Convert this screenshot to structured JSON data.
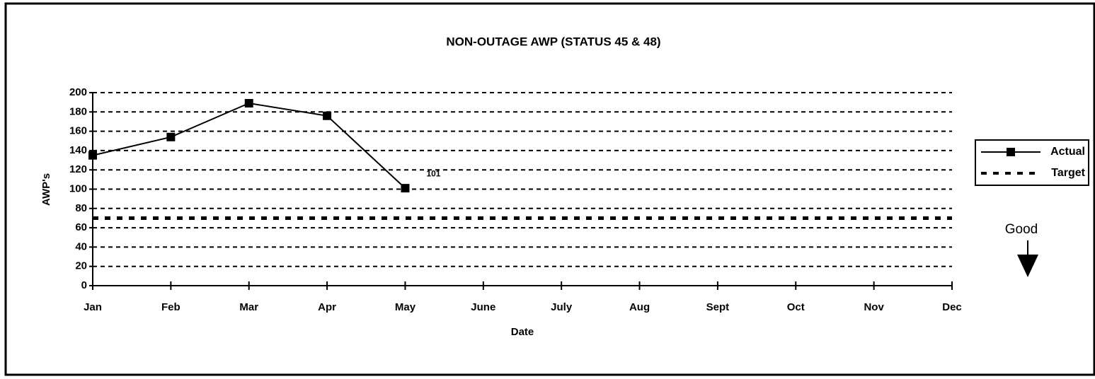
{
  "chart_data": {
    "type": "line",
    "title": "NON-OUTAGE AWP (STATUS 45 & 48)",
    "x_label": "Date",
    "y_label": "AWP's",
    "categories": [
      "Jan",
      "Feb",
      "Mar",
      "Apr",
      "May",
      "June",
      "July",
      "Aug",
      "Sept",
      "Oct",
      "Nov",
      "Dec"
    ],
    "series": [
      {
        "name": "Actual",
        "color": "#000000",
        "style": "solid-square",
        "values": [
          135,
          154,
          189,
          176,
          101,
          null,
          null,
          null,
          null,
          null,
          null,
          null
        ],
        "value_labels": [
          null,
          null,
          null,
          null,
          "101",
          null,
          null,
          null,
          null,
          null,
          null,
          null
        ]
      },
      {
        "name": "Target",
        "color": "#000000",
        "style": "dotted",
        "values": [
          70,
          70,
          70,
          70,
          70,
          70,
          70,
          70,
          70,
          70,
          70,
          70
        ]
      }
    ],
    "ylim": [
      0,
      200
    ],
    "yticks": [
      0,
      20,
      40,
      60,
      80,
      100,
      120,
      140,
      160,
      180,
      200
    ],
    "grid": true,
    "legend": "right",
    "annotation": "Good"
  }
}
